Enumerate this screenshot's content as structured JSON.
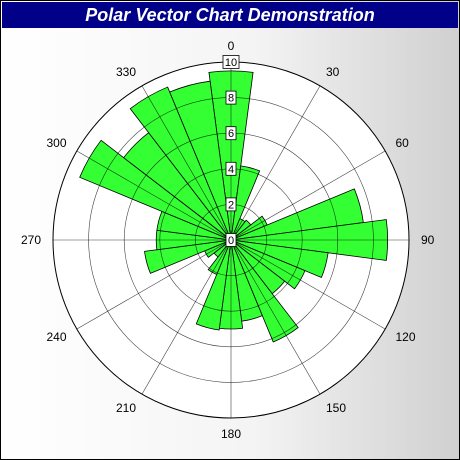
{
  "chart_data": {
    "type": "polar-bar",
    "title": "Polar Vector Chart Demonstration",
    "radial_range": [
      0,
      10
    ],
    "radial_ticks": [
      "0",
      "2",
      "4",
      "6",
      "8",
      "10"
    ],
    "angular_labels": [
      "0",
      "30",
      "60",
      "90",
      "120",
      "150",
      "180",
      "210",
      "240",
      "270",
      "300",
      "330"
    ],
    "grid": true,
    "fill_color": "#33ff33",
    "bars": [
      {
        "angle": 0,
        "value": 9.5
      },
      {
        "angle": 15,
        "value": 4.2
      },
      {
        "angle": 30,
        "value": 1.3
      },
      {
        "angle": 45,
        "value": 1.4
      },
      {
        "angle": 60,
        "value": 2.2
      },
      {
        "angle": 75,
        "value": 7.5
      },
      {
        "angle": 90,
        "value": 8.8
      },
      {
        "angle": 105,
        "value": 5.5
      },
      {
        "angle": 120,
        "value": 4.5
      },
      {
        "angle": 135,
        "value": 3.8
      },
      {
        "angle": 150,
        "value": 6.2
      },
      {
        "angle": 165,
        "value": 4.6
      },
      {
        "angle": 180,
        "value": 5.0
      },
      {
        "angle": 195,
        "value": 5.1
      },
      {
        "angle": 210,
        "value": 2.1
      },
      {
        "angle": 225,
        "value": 1.2
      },
      {
        "angle": 240,
        "value": 1.6
      },
      {
        "angle": 255,
        "value": 4.9
      },
      {
        "angle": 270,
        "value": 4.2
      },
      {
        "angle": 285,
        "value": 4.2
      },
      {
        "angle": 300,
        "value": 9.2
      },
      {
        "angle": 315,
        "value": 7.6
      },
      {
        "angle": 330,
        "value": 9.3
      },
      {
        "angle": 345,
        "value": 9.0
      }
    ]
  }
}
